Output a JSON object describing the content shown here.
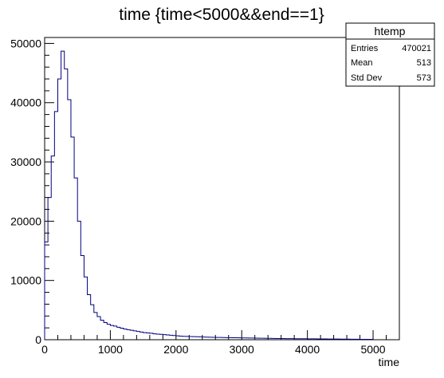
{
  "chart_data": {
    "type": "bar",
    "title": "time {time<5000&&end==1}",
    "xlabel": "time",
    "ylabel": "",
    "xlim": [
      0,
      5400
    ],
    "ylim": [
      0,
      51000
    ],
    "x_ticks": [
      0,
      1000,
      2000,
      3000,
      4000,
      5000
    ],
    "x_tick_labels": [
      "0",
      "1000",
      "2000",
      "3000",
      "4000",
      "5000"
    ],
    "y_ticks": [
      0,
      10000,
      20000,
      30000,
      40000,
      50000
    ],
    "y_tick_labels": [
      "0",
      "10000",
      "20000",
      "30000",
      "40000",
      "50000"
    ],
    "bin_width": 50,
    "series": [
      {
        "color": "#000080",
        "values": [
          16500,
          24000,
          31000,
          38500,
          44000,
          48700,
          45700,
          40500,
          34200,
          27300,
          20000,
          14200,
          10600,
          7600,
          5900,
          4600,
          3900,
          3300,
          2900,
          2600,
          2400,
          2300,
          2100,
          1950,
          1800,
          1700,
          1600,
          1500,
          1400,
          1300,
          1200,
          1150,
          1100,
          1000,
          950,
          900,
          850,
          800,
          750,
          700,
          650,
          600,
          580,
          560,
          540,
          520,
          500,
          480,
          460,
          440,
          420,
          400,
          390,
          380,
          370,
          360,
          350,
          340,
          330,
          320,
          310,
          300,
          290,
          280,
          270,
          260,
          250,
          240,
          230,
          220,
          210,
          200,
          195,
          190,
          185,
          180,
          175,
          170,
          165,
          160,
          155,
          150,
          145,
          140,
          135,
          130,
          125,
          120,
          115,
          110,
          105,
          100,
          95,
          90,
          85,
          80,
          75,
          70,
          65,
          60
        ]
      }
    ],
    "stats": {
      "name": "htemp",
      "rows": [
        {
          "label": "Entries",
          "value": "470021"
        },
        {
          "label": "Mean",
          "value": "513"
        },
        {
          "label": "Std Dev",
          "value": "573"
        }
      ]
    }
  }
}
